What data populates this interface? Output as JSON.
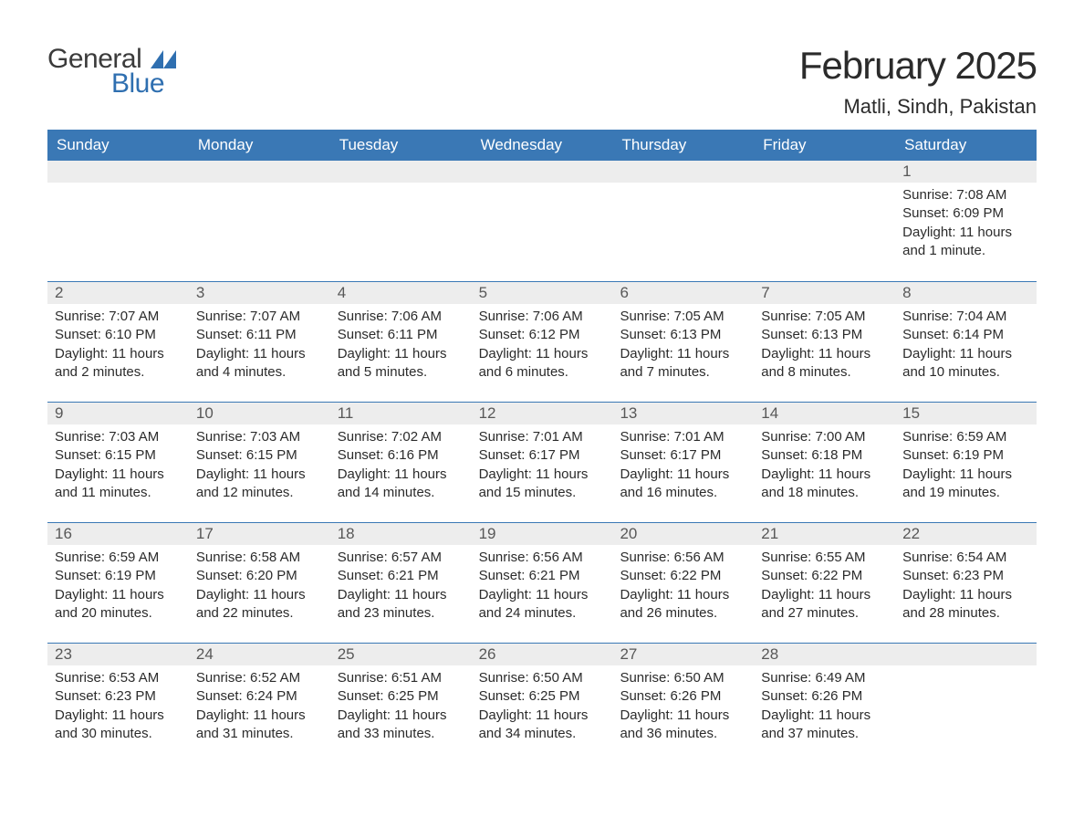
{
  "logo": {
    "top": "General",
    "bottom": "Blue",
    "icon_color": "#2f6fb0"
  },
  "title": "February 2025",
  "location": "Matli, Sindh, Pakistan",
  "colors": {
    "header_bg": "#3a78b5",
    "header_text": "#ffffff",
    "daybar_bg": "#ededed",
    "daynum_text": "#585858",
    "body_text": "#2b2b2b",
    "accent": "#2f6fb0",
    "page_bg": "#ffffff"
  },
  "weekdays": [
    "Sunday",
    "Monday",
    "Tuesday",
    "Wednesday",
    "Thursday",
    "Friday",
    "Saturday"
  ],
  "weeks": [
    [
      {
        "n": "",
        "sunrise": "",
        "sunset": "",
        "daylight": ""
      },
      {
        "n": "",
        "sunrise": "",
        "sunset": "",
        "daylight": ""
      },
      {
        "n": "",
        "sunrise": "",
        "sunset": "",
        "daylight": ""
      },
      {
        "n": "",
        "sunrise": "",
        "sunset": "",
        "daylight": ""
      },
      {
        "n": "",
        "sunrise": "",
        "sunset": "",
        "daylight": ""
      },
      {
        "n": "",
        "sunrise": "",
        "sunset": "",
        "daylight": ""
      },
      {
        "n": "1",
        "sunrise": "Sunrise: 7:08 AM",
        "sunset": "Sunset: 6:09 PM",
        "daylight": "Daylight: 11 hours and 1 minute."
      }
    ],
    [
      {
        "n": "2",
        "sunrise": "Sunrise: 7:07 AM",
        "sunset": "Sunset: 6:10 PM",
        "daylight": "Daylight: 11 hours and 2 minutes."
      },
      {
        "n": "3",
        "sunrise": "Sunrise: 7:07 AM",
        "sunset": "Sunset: 6:11 PM",
        "daylight": "Daylight: 11 hours and 4 minutes."
      },
      {
        "n": "4",
        "sunrise": "Sunrise: 7:06 AM",
        "sunset": "Sunset: 6:11 PM",
        "daylight": "Daylight: 11 hours and 5 minutes."
      },
      {
        "n": "5",
        "sunrise": "Sunrise: 7:06 AM",
        "sunset": "Sunset: 6:12 PM",
        "daylight": "Daylight: 11 hours and 6 minutes."
      },
      {
        "n": "6",
        "sunrise": "Sunrise: 7:05 AM",
        "sunset": "Sunset: 6:13 PM",
        "daylight": "Daylight: 11 hours and 7 minutes."
      },
      {
        "n": "7",
        "sunrise": "Sunrise: 7:05 AM",
        "sunset": "Sunset: 6:13 PM",
        "daylight": "Daylight: 11 hours and 8 minutes."
      },
      {
        "n": "8",
        "sunrise": "Sunrise: 7:04 AM",
        "sunset": "Sunset: 6:14 PM",
        "daylight": "Daylight: 11 hours and 10 minutes."
      }
    ],
    [
      {
        "n": "9",
        "sunrise": "Sunrise: 7:03 AM",
        "sunset": "Sunset: 6:15 PM",
        "daylight": "Daylight: 11 hours and 11 minutes."
      },
      {
        "n": "10",
        "sunrise": "Sunrise: 7:03 AM",
        "sunset": "Sunset: 6:15 PM",
        "daylight": "Daylight: 11 hours and 12 minutes."
      },
      {
        "n": "11",
        "sunrise": "Sunrise: 7:02 AM",
        "sunset": "Sunset: 6:16 PM",
        "daylight": "Daylight: 11 hours and 14 minutes."
      },
      {
        "n": "12",
        "sunrise": "Sunrise: 7:01 AM",
        "sunset": "Sunset: 6:17 PM",
        "daylight": "Daylight: 11 hours and 15 minutes."
      },
      {
        "n": "13",
        "sunrise": "Sunrise: 7:01 AM",
        "sunset": "Sunset: 6:17 PM",
        "daylight": "Daylight: 11 hours and 16 minutes."
      },
      {
        "n": "14",
        "sunrise": "Sunrise: 7:00 AM",
        "sunset": "Sunset: 6:18 PM",
        "daylight": "Daylight: 11 hours and 18 minutes."
      },
      {
        "n": "15",
        "sunrise": "Sunrise: 6:59 AM",
        "sunset": "Sunset: 6:19 PM",
        "daylight": "Daylight: 11 hours and 19 minutes."
      }
    ],
    [
      {
        "n": "16",
        "sunrise": "Sunrise: 6:59 AM",
        "sunset": "Sunset: 6:19 PM",
        "daylight": "Daylight: 11 hours and 20 minutes."
      },
      {
        "n": "17",
        "sunrise": "Sunrise: 6:58 AM",
        "sunset": "Sunset: 6:20 PM",
        "daylight": "Daylight: 11 hours and 22 minutes."
      },
      {
        "n": "18",
        "sunrise": "Sunrise: 6:57 AM",
        "sunset": "Sunset: 6:21 PM",
        "daylight": "Daylight: 11 hours and 23 minutes."
      },
      {
        "n": "19",
        "sunrise": "Sunrise: 6:56 AM",
        "sunset": "Sunset: 6:21 PM",
        "daylight": "Daylight: 11 hours and 24 minutes."
      },
      {
        "n": "20",
        "sunrise": "Sunrise: 6:56 AM",
        "sunset": "Sunset: 6:22 PM",
        "daylight": "Daylight: 11 hours and 26 minutes."
      },
      {
        "n": "21",
        "sunrise": "Sunrise: 6:55 AM",
        "sunset": "Sunset: 6:22 PM",
        "daylight": "Daylight: 11 hours and 27 minutes."
      },
      {
        "n": "22",
        "sunrise": "Sunrise: 6:54 AM",
        "sunset": "Sunset: 6:23 PM",
        "daylight": "Daylight: 11 hours and 28 minutes."
      }
    ],
    [
      {
        "n": "23",
        "sunrise": "Sunrise: 6:53 AM",
        "sunset": "Sunset: 6:23 PM",
        "daylight": "Daylight: 11 hours and 30 minutes."
      },
      {
        "n": "24",
        "sunrise": "Sunrise: 6:52 AM",
        "sunset": "Sunset: 6:24 PM",
        "daylight": "Daylight: 11 hours and 31 minutes."
      },
      {
        "n": "25",
        "sunrise": "Sunrise: 6:51 AM",
        "sunset": "Sunset: 6:25 PM",
        "daylight": "Daylight: 11 hours and 33 minutes."
      },
      {
        "n": "26",
        "sunrise": "Sunrise: 6:50 AM",
        "sunset": "Sunset: 6:25 PM",
        "daylight": "Daylight: 11 hours and 34 minutes."
      },
      {
        "n": "27",
        "sunrise": "Sunrise: 6:50 AM",
        "sunset": "Sunset: 6:26 PM",
        "daylight": "Daylight: 11 hours and 36 minutes."
      },
      {
        "n": "28",
        "sunrise": "Sunrise: 6:49 AM",
        "sunset": "Sunset: 6:26 PM",
        "daylight": "Daylight: 11 hours and 37 minutes."
      },
      {
        "n": "",
        "sunrise": "",
        "sunset": "",
        "daylight": ""
      }
    ]
  ]
}
